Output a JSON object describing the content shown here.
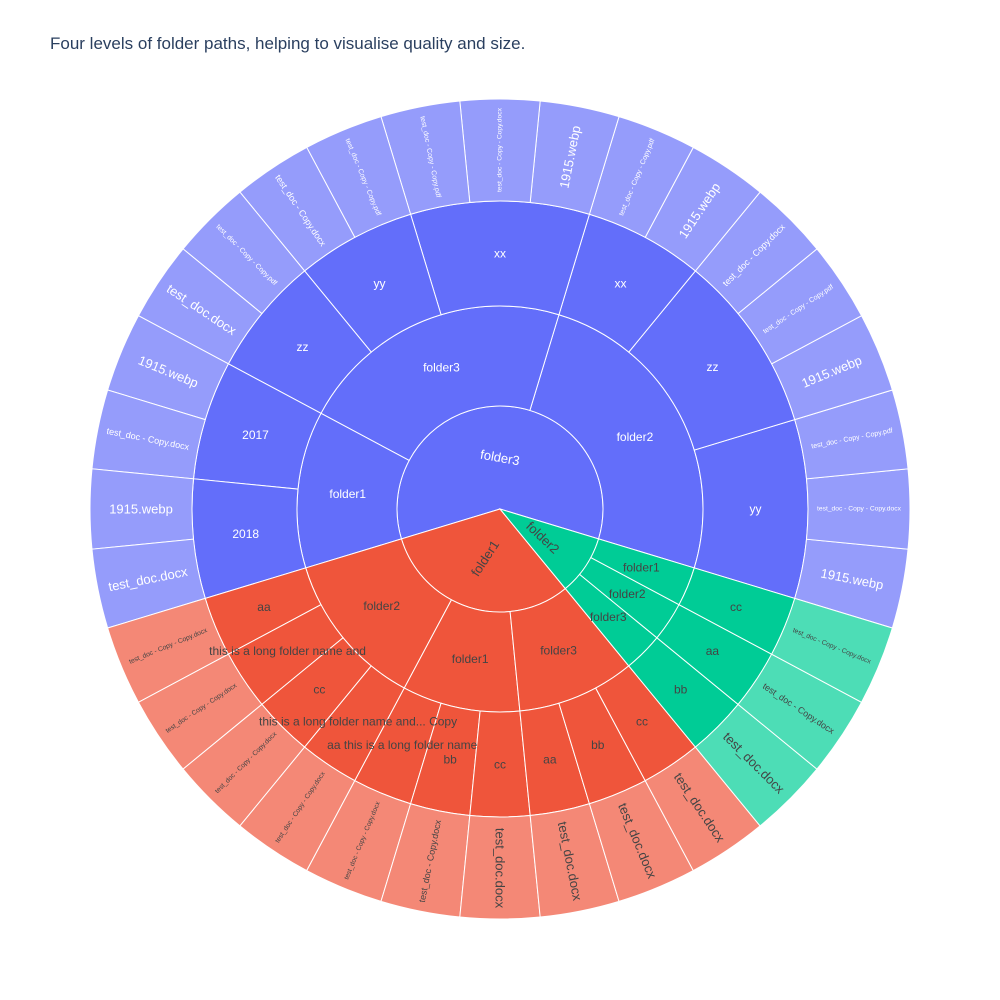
{
  "title": "Four levels of folder paths, helping to visualise quality and size.",
  "colors": {
    "branches": [
      "#636efa",
      "#ef553b",
      "#00cc96"
    ],
    "leaf_tints": [
      "#959cfb",
      "#f48876",
      "#4dddb6"
    ],
    "stroke": "#ffffff",
    "dark_text": "#444444",
    "light_text": "#ffffff"
  },
  "chart_data": {
    "type": "sunburst",
    "title": "Four levels of folder paths, helping to visualise quality and size.",
    "root": {
      "label": "",
      "children": [
        {
          "label": "folder3",
          "children": [
            {
              "label": "folder2",
              "children": [
                {
                  "label": "yy",
                  "children": [
                    {
                      "label": "1915.webp",
                      "value": 1
                    },
                    {
                      "label": "test_doc - Copy - Copy.docx",
                      "value": 1
                    },
                    {
                      "label": "test_doc - Copy - Copy.pdf",
                      "value": 1
                    }
                  ]
                },
                {
                  "label": "zz",
                  "children": [
                    {
                      "label": "1915.webp",
                      "value": 1
                    },
                    {
                      "label": "test_doc - Copy - Copy.pdf",
                      "value": 1
                    },
                    {
                      "label": "test_doc - Copy.docx",
                      "value": 1
                    }
                  ]
                },
                {
                  "label": "xx",
                  "children": [
                    {
                      "label": "1915.webp",
                      "value": 1
                    },
                    {
                      "label": "test_doc - Copy - Copy.pdf",
                      "value": 1
                    }
                  ]
                }
              ]
            },
            {
              "label": "folder3",
              "children": [
                {
                  "label": "xx",
                  "children": [
                    {
                      "label": "1915.webp",
                      "value": 1
                    },
                    {
                      "label": "test_doc - Copy - Copy.docx",
                      "value": 1
                    },
                    {
                      "label": "test_doc - Copy - Copy.pdf",
                      "value": 1
                    }
                  ]
                },
                {
                  "label": "yy",
                  "children": [
                    {
                      "label": "test_doc - Copy - Copy.pdf",
                      "value": 1
                    },
                    {
                      "label": "test_doc - Copy.docx",
                      "value": 1
                    }
                  ]
                },
                {
                  "label": "zz",
                  "children": [
                    {
                      "label": "test_doc - Copy - Copy.pdf",
                      "value": 1
                    },
                    {
                      "label": "test_doc.docx",
                      "value": 1
                    }
                  ]
                }
              ]
            },
            {
              "label": "folder1",
              "children": [
                {
                  "label": "2017",
                  "children": [
                    {
                      "label": "1915.webp",
                      "value": 1
                    },
                    {
                      "label": "test_doc - Copy.docx",
                      "value": 1
                    }
                  ]
                },
                {
                  "label": "2018",
                  "children": [
                    {
                      "label": "1915.webp",
                      "value": 1
                    },
                    {
                      "label": "test_doc.docx",
                      "value": 1
                    }
                  ]
                }
              ]
            }
          ]
        },
        {
          "label": "folder1",
          "children": [
            {
              "label": "folder2",
              "children": [
                {
                  "label": "aa",
                  "children": [
                    {
                      "label": "test_doc - Copy - Copy.docx",
                      "value": 1
                    }
                  ]
                },
                {
                  "label": "this is a long folder name and",
                  "children": [
                    {
                      "label": "test_doc - Copy - Copy.docx",
                      "value": 1
                    }
                  ]
                },
                {
                  "label": "cc",
                  "children": [
                    {
                      "label": "test_doc - Copy - Copy.docx",
                      "value": 1
                    }
                  ]
                },
                {
                  "label": "this is a long folder name and... Copy",
                  "children": [
                    {
                      "label": "test_doc - Copy - Copy.docx",
                      "value": 1
                    }
                  ]
                }
              ]
            },
            {
              "label": "folder1",
              "children": [
                {
                  "label": "aa this is a long folder name",
                  "children": [
                    {
                      "label": "test_doc - Copy - Copy.docx",
                      "value": 1
                    }
                  ]
                },
                {
                  "label": "bb",
                  "children": [
                    {
                      "label": "test_doc - Copy.docx",
                      "value": 1
                    }
                  ]
                },
                {
                  "label": "cc",
                  "children": [
                    {
                      "label": "test_doc.docx",
                      "value": 1
                    }
                  ]
                }
              ]
            },
            {
              "label": "folder3",
              "children": [
                {
                  "label": "aa",
                  "children": [
                    {
                      "label": "test_doc.docx",
                      "value": 1
                    }
                  ]
                },
                {
                  "label": "bb",
                  "children": [
                    {
                      "label": "test_doc.docx",
                      "value": 1
                    }
                  ]
                },
                {
                  "label": "cc",
                  "children": [
                    {
                      "label": "test_doc.docx",
                      "value": 1
                    }
                  ]
                }
              ]
            }
          ]
        },
        {
          "label": "folder2",
          "children": [
            {
              "label": "folder3",
              "children": [
                {
                  "label": "bb",
                  "children": [
                    {
                      "label": "test_doc.docx",
                      "value": 1
                    }
                  ]
                }
              ]
            },
            {
              "label": "folder2",
              "children": [
                {
                  "label": "aa",
                  "children": [
                    {
                      "label": "test_doc - Copy.docx",
                      "value": 1
                    }
                  ]
                }
              ]
            },
            {
              "label": "folder1",
              "children": [
                {
                  "label": "cc",
                  "children": [
                    {
                      "label": "test_doc - Copy - Copy.docx",
                      "value": 1
                    }
                  ]
                }
              ]
            }
          ]
        }
      ]
    }
  }
}
